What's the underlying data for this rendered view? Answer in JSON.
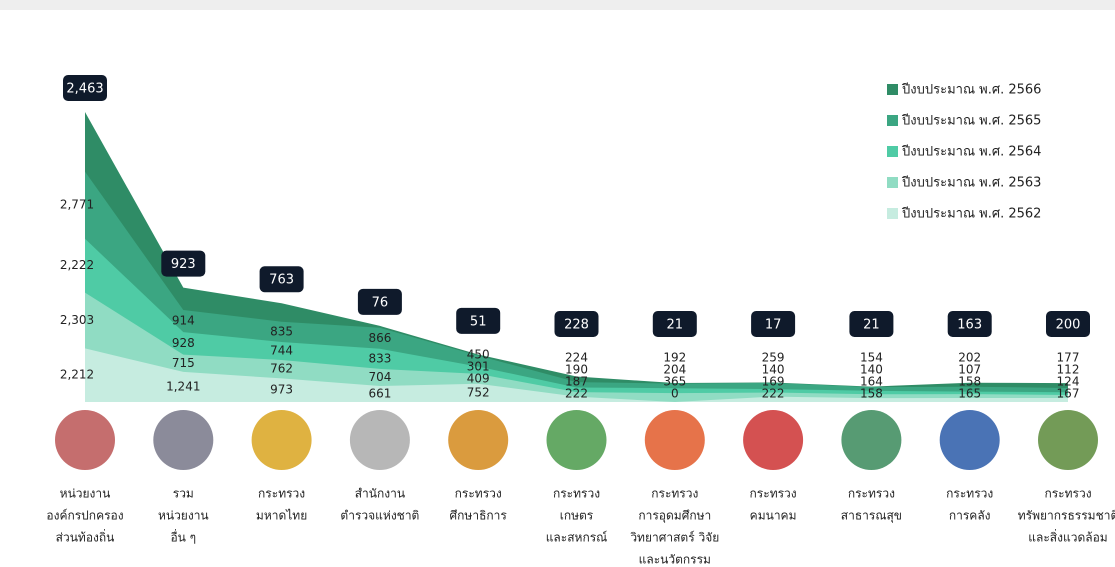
{
  "chart_data": {
    "type": "stacked-area",
    "categories": [
      [
        "หน่วยงาน",
        "องค์กรปกครอง",
        "ส่วนท้องถิ่น"
      ],
      [
        "รวม",
        "หน่วยงาน",
        "อื่น ๆ"
      ],
      [
        "กระทรวง",
        "มหาดไทย"
      ],
      [
        "สำนักงาน",
        "ตำรวจแห่งชาติ"
      ],
      [
        "กระทรวง",
        "ศึกษาธิการ"
      ],
      [
        "กระทรวง",
        "เกษตร",
        "และสหกรณ์"
      ],
      [
        "กระทรวง",
        "การอุดมศึกษา",
        "วิทยาศาสตร์ วิจัย",
        "และนวัตกรรม"
      ],
      [
        "กระทรวง",
        "คมนาคม"
      ],
      [
        "กระทรวง",
        "สาธารณสุข"
      ],
      [
        "กระทรวง",
        "การคลัง"
      ],
      [
        "กระทรวง",
        "ทรัพยากรธรรมชาติ",
        "และสิ่งแวดล้อม"
      ]
    ],
    "series": [
      {
        "name": "ปีงบประมาณ พ.ศ. 2566",
        "color": "#2f8c66",
        "values": [
          2463,
          923,
          763,
          76,
          51,
          228,
          21,
          17,
          21,
          163,
          200
        ],
        "value_labels": [
          "2,463",
          "923",
          "763",
          "76",
          "51",
          "228",
          "21",
          "17",
          "21",
          "163",
          "200"
        ]
      },
      {
        "name": "ปีงบประมาณ พ.ศ. 2565",
        "color": "#3ba682",
        "values": [
          2771,
          914,
          835,
          866,
          450,
          224,
          192,
          259,
          154,
          202,
          177
        ],
        "value_labels": [
          "2,771",
          "914",
          "835",
          "866",
          "450",
          "224",
          "192",
          "259",
          "154",
          "202",
          "177"
        ]
      },
      {
        "name": "ปีงบประมาณ พ.ศ. 2564",
        "color": "#4fcba5",
        "values": [
          2222,
          928,
          744,
          833,
          301,
          190,
          204,
          140,
          140,
          107,
          112
        ],
        "value_labels": [
          "2,222",
          "928",
          "744",
          "833",
          "301",
          "190",
          "204",
          "140",
          "140",
          "107",
          "112"
        ]
      },
      {
        "name": "ปีงบประมาณ พ.ศ. 2563",
        "color": "#90dcc3",
        "values": [
          2303,
          715,
          762,
          704,
          409,
          187,
          365,
          169,
          164,
          158,
          124
        ],
        "value_labels": [
          "2,303",
          "715",
          "762",
          "704",
          "409",
          "187",
          "365",
          "169",
          "164",
          "158",
          "124"
        ]
      },
      {
        "name": "ปีงบประมาณ พ.ศ. 2562",
        "color": "#c6ece0",
        "values": [
          2212,
          1241,
          973,
          661,
          752,
          222,
          0,
          222,
          158,
          165,
          167
        ],
        "value_labels": [
          "2,212",
          "1,241",
          "973",
          "661",
          "752",
          "222",
          "0",
          "222",
          "158",
          "165",
          "167"
        ]
      }
    ]
  }
}
